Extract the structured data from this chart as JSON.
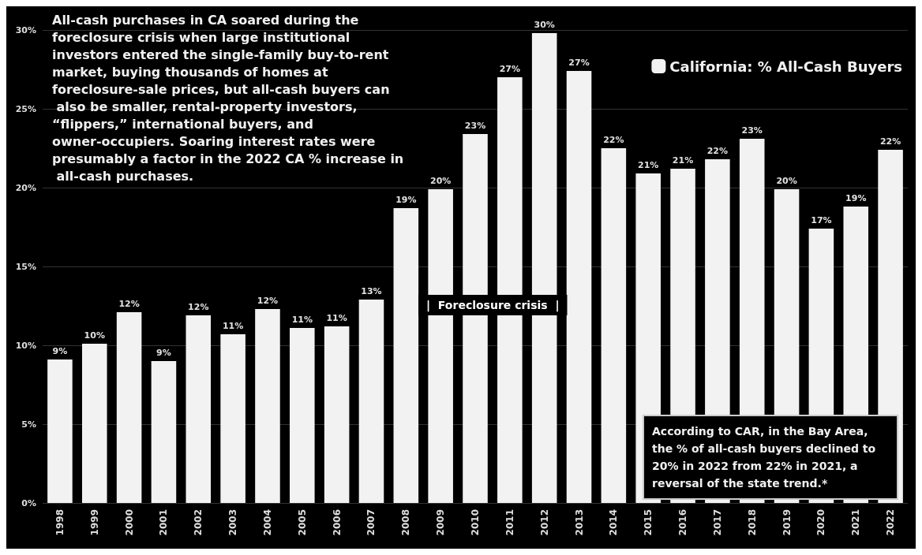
{
  "chart_data": {
    "type": "bar",
    "categories": [
      "1998",
      "1999",
      "2000",
      "2001",
      "2002",
      "2003",
      "2004",
      "2005",
      "2006",
      "2007",
      "2008",
      "2009",
      "2010",
      "2011",
      "2012",
      "2013",
      "2014",
      "2015",
      "2016",
      "2017",
      "2018",
      "2019",
      "2020",
      "2021",
      "2022"
    ],
    "series": [
      {
        "name": "California: % All-Cash Buyers",
        "color": "#f2f2f2",
        "values": [
          9.1,
          10.1,
          12.1,
          9.0,
          11.9,
          10.7,
          12.3,
          11.1,
          11.2,
          12.9,
          18.7,
          19.9,
          23.4,
          27.0,
          29.8,
          27.4,
          22.5,
          20.9,
          21.2,
          21.8,
          23.1,
          19.9,
          17.4,
          18.8,
          22.4
        ],
        "value_labels": [
          "9%",
          "10%",
          "12%",
          "9%",
          "12%",
          "11%",
          "12%",
          "11%",
          "11%",
          "13%",
          "19%",
          "20%",
          "23%",
          "27%",
          "30%",
          "27%",
          "22%",
          "21%",
          "21%",
          "22%",
          "23%",
          "20%",
          "17%",
          "19%",
          "22%"
        ]
      }
    ],
    "ylim": [
      0,
      30
    ],
    "yticks": [
      {
        "value": 0,
        "label": "0%"
      },
      {
        "value": 5,
        "label": "5%"
      },
      {
        "value": 10,
        "label": "10%"
      },
      {
        "value": 15,
        "label": "15%"
      },
      {
        "value": 20,
        "label": "20%"
      },
      {
        "value": 25,
        "label": "25%"
      },
      {
        "value": 30,
        "label": "30%"
      }
    ],
    "grid": "y",
    "legend": "top right",
    "annotations": [
      "All-cash purchases in CA soared during the foreclosure crisis when large institutional investors entered the single-family buy-to-rent market, buying thousands of homes at foreclosure-sale prices, but all-cash buyers can also be smaller, rental-property investors, “flippers,” international buyers, and owner-occupiers. Soaring interest rates were presumably a factor in the 2022 CA % increase in all-cash purchases.",
      "|  Foreclosure crisis  |",
      "According to CAR, in the Bay Area, the % of all-cash buyers declined to 20% in 2022 from 22% in 2021, a reversal of the state trend.*"
    ]
  }
}
